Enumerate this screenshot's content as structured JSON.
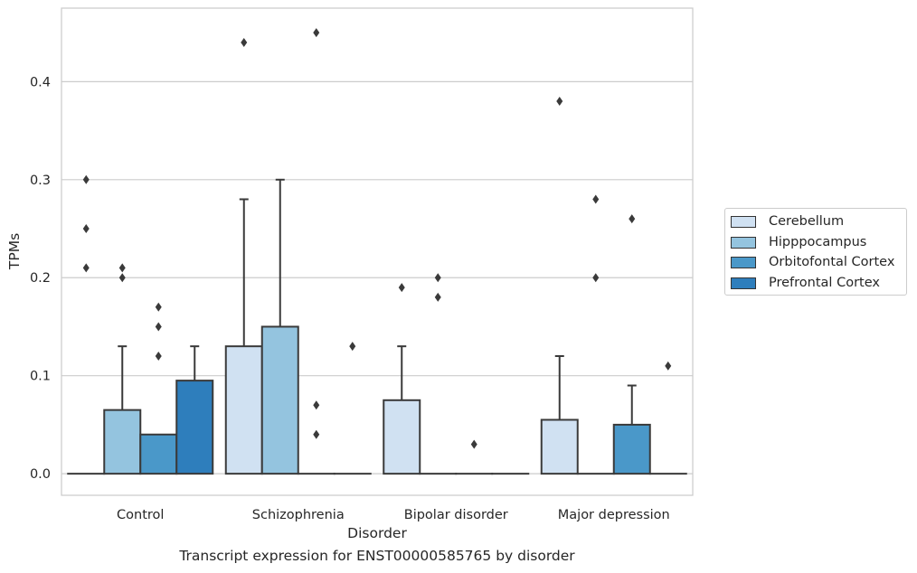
{
  "chart_data": {
    "type": "bar",
    "xlabel": "Disorder",
    "ylabel": "TPMs",
    "ylim": [
      -0.022,
      0.475
    ],
    "yticks": [
      "0.0",
      "0.1",
      "0.2",
      "0.3",
      "0.4"
    ],
    "grid": true,
    "legend_position": "right",
    "categories": [
      "Control",
      "Schizophrenia",
      "Bipolar disorder",
      "Major depression"
    ],
    "series": [
      {
        "name": "Cerebellum",
        "color": "#d0e1f2",
        "values": [
          0.0,
          0.13,
          0.075,
          0.055
        ],
        "whisker_high": [
          null,
          0.28,
          0.13,
          0.12
        ],
        "outliers": [
          [
            0.3,
            0.25,
            0.21
          ],
          [
            0.44
          ],
          [
            0.19
          ],
          [
            0.38
          ]
        ]
      },
      {
        "name": "Hipppocampus",
        "color": "#94c4df",
        "values": [
          0.065,
          0.15,
          0.0,
          0.0
        ],
        "whisker_high": [
          0.13,
          0.3,
          null,
          null
        ],
        "outliers": [
          [
            0.21,
            0.2
          ],
          [],
          [
            0.2,
            0.18
          ],
          [
            0.28,
            0.2
          ]
        ]
      },
      {
        "name": "Orbitofontal Cortex",
        "color": "#4a98c9",
        "values": [
          0.04,
          0.0,
          0.0,
          0.05
        ],
        "whisker_high": [
          null,
          null,
          null,
          0.09
        ],
        "outliers": [
          [
            0.17,
            0.15,
            0.12
          ],
          [
            0.45,
            0.07,
            0.04
          ],
          [
            0.03
          ],
          [
            0.26
          ]
        ]
      },
      {
        "name": "Prefrontal Cortex",
        "color": "#2e7ebc",
        "values": [
          0.095,
          0.0,
          0.0,
          0.0
        ],
        "whisker_high": [
          0.13,
          null,
          null,
          null
        ],
        "outliers": [
          [],
          [
            0.13
          ],
          [],
          [
            0.11
          ]
        ]
      }
    ]
  },
  "caption": "Transcript expression for ENST00000585765 by disorder"
}
